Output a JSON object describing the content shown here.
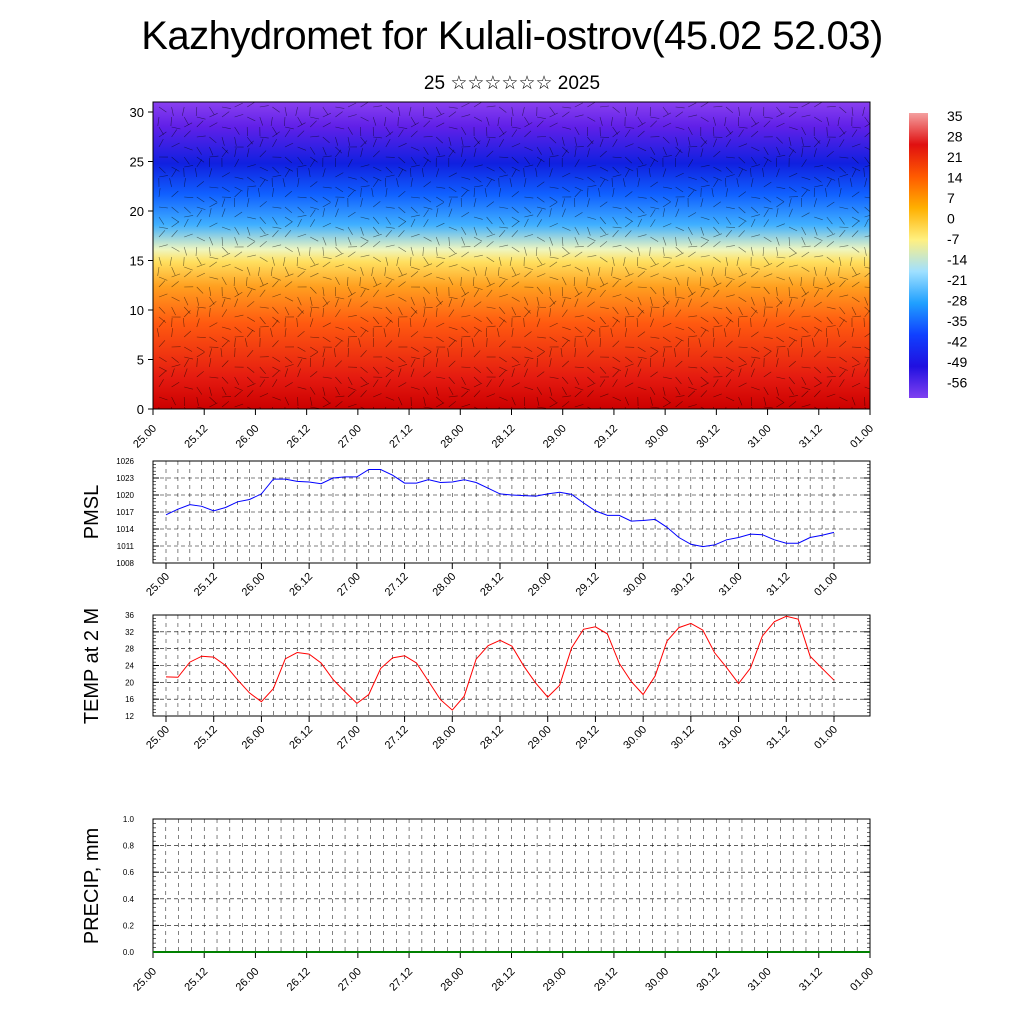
{
  "title": "Kazhydromet for Kulali-ostrov(45.02 52.03)",
  "subtitle": "25 ☆☆☆☆☆☆ 2025",
  "colorbar": {
    "labels": [
      "35",
      "28",
      "21",
      "14",
      "7",
      "0",
      "-7",
      "-14",
      "-21",
      "-28",
      "-35",
      "-42",
      "-49",
      "-56"
    ],
    "stops": [
      "#f4a0a0",
      "#e01010",
      "#ff5a00",
      "#ffb000",
      "#fff080",
      "#a0e0ff",
      "#20a0ff",
      "#1040ff",
      "#2010e0",
      "#8040f0"
    ]
  },
  "chart_data": [
    {
      "type": "heatmap",
      "description_axis": "height layers vs time",
      "ylim": [
        0,
        30
      ],
      "yticks": [
        "0",
        "5",
        "10",
        "15",
        "20",
        "25",
        "30"
      ],
      "xticks": [
        "25.00",
        "25.12",
        "26.00",
        "26.12",
        "27.00",
        "27.12",
        "28.00",
        "28.12",
        "29.00",
        "29.12",
        "30.00",
        "30.12",
        "31.00",
        "31.12",
        "01.00"
      ],
      "levels": [
        35,
        28,
        21,
        14,
        7,
        0,
        -7,
        -14,
        -21,
        -28,
        -35,
        -42,
        -49,
        -56
      ]
    },
    {
      "type": "line",
      "ylabel": "PMSL",
      "ylim": [
        1008,
        1026
      ],
      "yticks": [
        "1008",
        "1011",
        "1014",
        "1017",
        "1020",
        "1023",
        "1026"
      ],
      "xticks": [
        "25.00",
        "25.12",
        "26.00",
        "26.12",
        "27.00",
        "27.12",
        "28.00",
        "28.12",
        "29.00",
        "29.12",
        "30.00",
        "30.12",
        "31.00",
        "31.12",
        "01.00"
      ],
      "color": "#0000ff",
      "series": [
        {
          "values": [
            1016.5,
            1017.5,
            1018.3,
            1018.0,
            1017.2,
            1017.8,
            1018.8,
            1019.2,
            1020.2,
            1022.8,
            1022.8,
            1022.4,
            1022.3,
            1022.0,
            1023.0,
            1023.2,
            1023.2,
            1024.5,
            1024.5,
            1023.5,
            1022.1,
            1022.1,
            1022.7,
            1022.2,
            1022.3,
            1022.7,
            1022.2,
            1021.2,
            1020.2,
            1020.0,
            1019.9,
            1019.8,
            1020.2,
            1020.5,
            1020.1,
            1018.6,
            1017.2,
            1016.4,
            1016.4,
            1015.4,
            1015.5,
            1015.7,
            1014.3,
            1012.5,
            1011.3,
            1010.9,
            1011.2,
            1012.1,
            1012.5,
            1013.1,
            1013.0,
            1012.1,
            1011.5,
            1011.5,
            1012.5,
            1012.9,
            1013.4
          ]
        }
      ]
    },
    {
      "type": "line",
      "ylabel": "TEMP at 2 M",
      "ylim": [
        12,
        36
      ],
      "yticks": [
        "12",
        "16",
        "20",
        "24",
        "28",
        "32",
        "36"
      ],
      "xticks": [
        "25.00",
        "25.12",
        "26.00",
        "26.12",
        "27.00",
        "27.12",
        "28.00",
        "28.12",
        "29.00",
        "29.12",
        "30.00",
        "30.12",
        "31.00",
        "31.12",
        "01.00"
      ],
      "color": "#ff0000",
      "series": [
        {
          "values": [
            21.3,
            21.2,
            24.8,
            26.2,
            26.0,
            24.0,
            20.6,
            17.5,
            15.4,
            18.5,
            25.6,
            27.1,
            26.7,
            24.6,
            20.7,
            17.8,
            15.0,
            17.1,
            23.3,
            25.8,
            26.3,
            24.6,
            20.3,
            15.9,
            13.4,
            16.7,
            25.5,
            28.7,
            30.0,
            28.6,
            23.8,
            19.8,
            16.5,
            19.3,
            28.2,
            32.6,
            33.2,
            31.5,
            24.5,
            20.2,
            17.1,
            21.5,
            29.8,
            33.0,
            34.0,
            32.4,
            27.0,
            23.5,
            19.7,
            23.4,
            31.0,
            34.4,
            35.7,
            35.0,
            26.2,
            23.3,
            20.5
          ]
        }
      ]
    },
    {
      "type": "line",
      "ylabel": "PRECIP, mm",
      "ylim": [
        0,
        1
      ],
      "yticks": [
        "0.0",
        "0.2",
        "0.4",
        "0.6",
        "0.8",
        "1.0"
      ],
      "xticks": [
        "25.00",
        "25.12",
        "26.00",
        "26.12",
        "27.00",
        "27.12",
        "28.00",
        "28.12",
        "29.00",
        "29.12",
        "30.00",
        "30.12",
        "31.00",
        "31.12",
        "01.00"
      ],
      "color": "#008000",
      "series": [
        {
          "values": [
            0,
            0,
            0,
            0,
            0,
            0,
            0,
            0,
            0,
            0,
            0,
            0,
            0,
            0,
            0,
            0,
            0,
            0,
            0,
            0,
            0,
            0,
            0,
            0,
            0,
            0,
            0,
            0,
            0,
            0,
            0,
            0,
            0,
            0,
            0,
            0,
            0,
            0,
            0,
            0,
            0,
            0,
            0,
            0,
            0,
            0,
            0,
            0,
            0,
            0,
            0,
            0,
            0,
            0,
            0,
            0,
            0
          ]
        }
      ]
    }
  ]
}
